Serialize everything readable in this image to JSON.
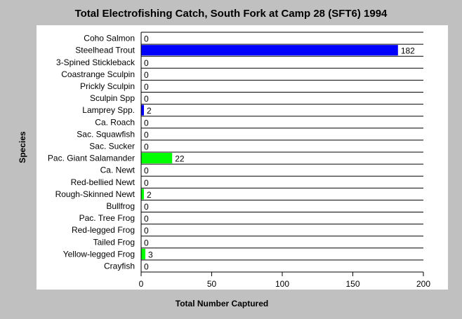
{
  "chart_data": {
    "type": "bar",
    "orientation": "horizontal",
    "title": "Total Electrofishing Catch, South Fork at Camp 28 (SFT6) 1994",
    "xlabel": "Total Number Captured",
    "ylabel": "Species",
    "xlim": [
      0,
      200
    ],
    "x_ticks": [
      0,
      50,
      100,
      150,
      200
    ],
    "grid": "horizontal row lines",
    "categories": [
      "Coho Salmon",
      "Steelhead Trout",
      "3-Spined Stickleback",
      "Coastrange Sculpin",
      "Prickly Sculpin",
      "Sculpin Spp",
      "Lamprey Spp.",
      "Ca. Roach",
      "Sac. Squawfish",
      "Sac. Sucker",
      "Pac. Giant Salamander",
      "Ca. Newt",
      "Red-bellied Newt",
      "Rough-Skinned Newt",
      "Bullfrog",
      "Pac. Tree Frog",
      "Red-legged Frog",
      "Tailed Frog",
      "Yellow-legged Frog",
      "Crayfish"
    ],
    "values": [
      0,
      182,
      0,
      0,
      0,
      0,
      2,
      0,
      0,
      0,
      22,
      0,
      0,
      2,
      0,
      0,
      0,
      0,
      3,
      0
    ],
    "bar_colors": [
      "#0000ff",
      "#0000ff",
      "#0000ff",
      "#0000ff",
      "#0000ff",
      "#0000ff",
      "#0000ff",
      "#0000ff",
      "#0000ff",
      "#0000ff",
      "#00ff00",
      "#00ff00",
      "#00ff00",
      "#00ff00",
      "#00ff00",
      "#00ff00",
      "#00ff00",
      "#00ff00",
      "#00ff00",
      "#00ff00"
    ],
    "data_labels": [
      "0",
      "182",
      "0",
      "0",
      "0",
      "0",
      "2",
      "0",
      "0",
      "0",
      "22",
      "0",
      "0",
      "2",
      "0",
      "0",
      "0",
      "0",
      "3",
      "0"
    ]
  }
}
